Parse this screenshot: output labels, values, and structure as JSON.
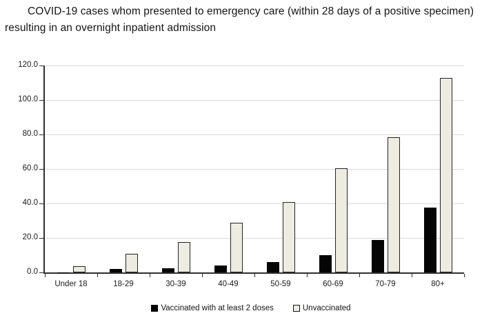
{
  "title": "COVID-19 cases whom presented to emergency care (within 28 days of a positive specimen) resulting in an overnight inpatient admission",
  "colors": {
    "vaccinated_fill": "#050505",
    "unvaccinated_fill": "#eeebe1",
    "bar_border": "#222222",
    "gridline": "#d9d9d9",
    "axis": "#2e2e2e"
  },
  "chart_data": {
    "type": "bar",
    "title": "COVID-19 cases whom presented to emergency care (within 28 days of a positive specimen) resulting in an overnight inpatient admission",
    "categories": [
      "Under 18",
      "18-29",
      "30-39",
      "40-49",
      "50-59",
      "60-69",
      "70-79",
      "80+"
    ],
    "series": [
      {
        "key": "vaccinated",
        "name": "Vaccinated with at least 2 doses",
        "values": [
          0.2,
          2.0,
          2.5,
          4.0,
          6.0,
          10.0,
          19.0,
          37.5
        ]
      },
      {
        "key": "unvaccinated",
        "name": "Unvaccinated",
        "values": [
          3.5,
          11.0,
          17.5,
          29.0,
          41.0,
          60.5,
          78.5,
          113.0
        ]
      }
    ],
    "xlabel": "",
    "ylabel": "",
    "ylim": [
      0,
      120
    ],
    "yticks": [
      {
        "value": 0,
        "label": "0.0"
      },
      {
        "value": 20,
        "label": "20.0"
      },
      {
        "value": 40,
        "label": "40.0"
      },
      {
        "value": 60,
        "label": "60.0"
      },
      {
        "value": 80,
        "label": "80.0"
      },
      {
        "value": 100,
        "label": "100.0"
      },
      {
        "value": 120,
        "label": "120.0"
      }
    ],
    "grid": true,
    "legend_position": "bottom"
  }
}
